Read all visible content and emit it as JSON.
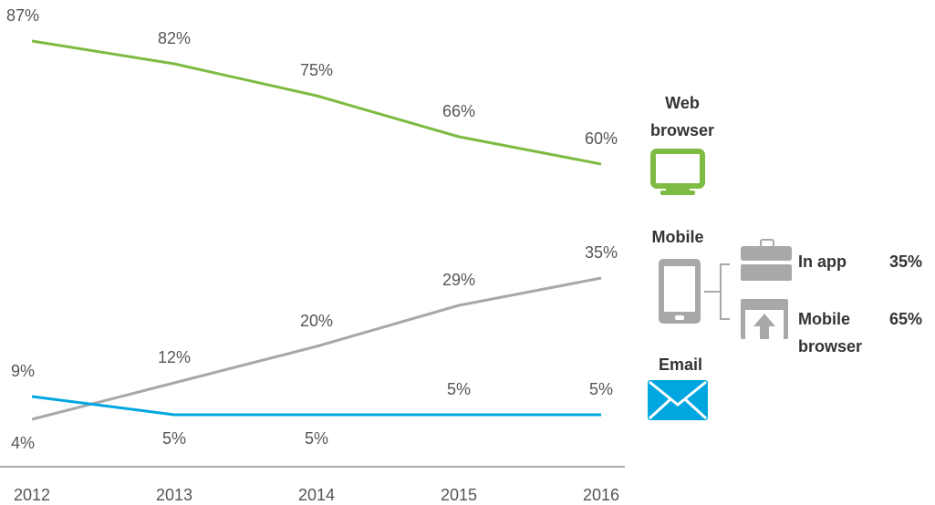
{
  "chart_data": {
    "type": "line",
    "categories": [
      "2012",
      "2013",
      "2014",
      "2015",
      "2016"
    ],
    "series": [
      {
        "name": "Web browser",
        "color": "#7dbb42",
        "values": [
          87,
          82,
          75,
          66,
          60
        ],
        "value_labels": [
          "87%",
          "82%",
          "75%",
          "66%",
          "60%"
        ]
      },
      {
        "name": "Mobile",
        "color": "#a7a8aa",
        "values": [
          4,
          12,
          20,
          29,
          35
        ],
        "value_labels": [
          "4%",
          "12%",
          "20%",
          "29%",
          "35%"
        ]
      },
      {
        "name": "Email",
        "color": "#00a6e0",
        "values": [
          9,
          5,
          5,
          5,
          5
        ],
        "value_labels": [
          "9%",
          "5%",
          "5%",
          "5%",
          "5%"
        ]
      }
    ],
    "mobile_split": {
      "labels": [
        "In app",
        "Mobile browser"
      ],
      "values": [
        35,
        65
      ],
      "value_labels": [
        "35%",
        "65%"
      ]
    },
    "ylim": [
      0,
      96
    ]
  }
}
